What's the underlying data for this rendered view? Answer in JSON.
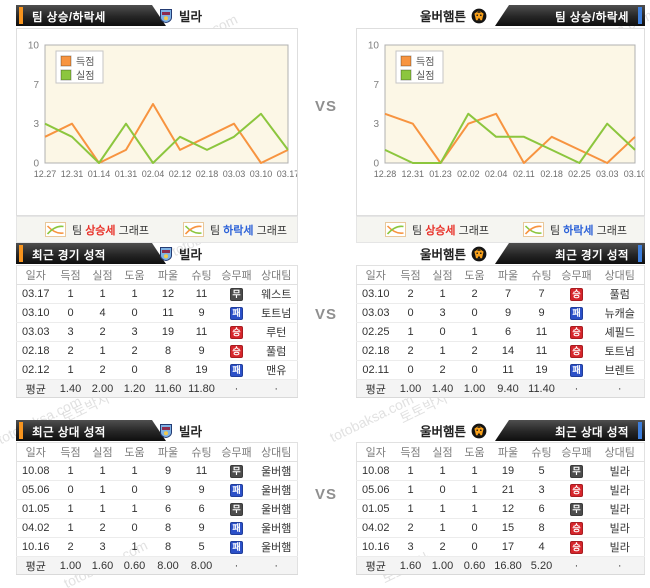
{
  "vs_label": "VS",
  "watermark": {
    "korean": "토토박사",
    "latin": "totobaksa.com"
  },
  "teams": {
    "left": {
      "name": "빌라"
    },
    "right": {
      "name": "울버햄튼"
    }
  },
  "colors": {
    "accent_orange": "#F7941E",
    "accent_blue": "#3D7EDB",
    "line_orange": "#F79440",
    "line_green": "#8CC63E",
    "rise_text": "#E8322A",
    "fall_text": "#2D62D8"
  },
  "result_badges": {
    "승": {
      "bg": "#D6252B"
    },
    "무": {
      "bg": "#4C4C4C"
    },
    "패": {
      "bg": "#2B50C8"
    }
  },
  "table_columns": [
    "일자",
    "득점",
    "실점",
    "도움",
    "파울",
    "슈팅",
    "승무패",
    "상대팀"
  ],
  "sections": {
    "trend": {
      "title": "팀 상승/하락세",
      "footer_legend": [
        {
          "pre": "팀",
          "word": "상승세",
          "post": "그래프",
          "color": "#E8322A",
          "icon": "rise"
        },
        {
          "pre": "팀",
          "word": "하락세",
          "post": "그래프",
          "color": "#2D62D8",
          "icon": "fall"
        }
      ]
    },
    "recent": {
      "title": "최근 경기 성적",
      "left": {
        "rows": [
          [
            "03.17",
            "1",
            "1",
            "1",
            "12",
            "11",
            "무",
            "웨스트"
          ],
          [
            "03.10",
            "0",
            "4",
            "0",
            "11",
            "9",
            "패",
            "토트넘"
          ],
          [
            "03.03",
            "3",
            "2",
            "3",
            "19",
            "11",
            "승",
            "루턴"
          ],
          [
            "02.18",
            "2",
            "1",
            "2",
            "8",
            "9",
            "승",
            "풀럼"
          ],
          [
            "02.12",
            "1",
            "2",
            "0",
            "8",
            "19",
            "패",
            "맨유"
          ]
        ],
        "avg": [
          "평균",
          "1.40",
          "2.00",
          "1.20",
          "11.60",
          "11.80",
          "·",
          "·"
        ]
      },
      "right": {
        "rows": [
          [
            "03.10",
            "2",
            "1",
            "2",
            "7",
            "7",
            "승",
            "풀럼"
          ],
          [
            "03.03",
            "0",
            "3",
            "0",
            "9",
            "9",
            "패",
            "뉴캐슬"
          ],
          [
            "02.25",
            "1",
            "0",
            "1",
            "6",
            "11",
            "승",
            "셰필드"
          ],
          [
            "02.18",
            "2",
            "1",
            "2",
            "14",
            "11",
            "승",
            "토트넘"
          ],
          [
            "02.11",
            "0",
            "2",
            "0",
            "11",
            "19",
            "패",
            "브렌트"
          ]
        ],
        "avg": [
          "평균",
          "1.00",
          "1.40",
          "1.00",
          "9.40",
          "11.40",
          "·",
          "·"
        ]
      }
    },
    "h2h": {
      "title": "최근 상대 성적",
      "left": {
        "rows": [
          [
            "10.08",
            "1",
            "1",
            "1",
            "9",
            "11",
            "무",
            "울버햄"
          ],
          [
            "05.06",
            "0",
            "1",
            "0",
            "9",
            "9",
            "패",
            "울버햄"
          ],
          [
            "01.05",
            "1",
            "1",
            "1",
            "6",
            "6",
            "무",
            "울버햄"
          ],
          [
            "04.02",
            "1",
            "2",
            "0",
            "8",
            "9",
            "패",
            "울버햄"
          ],
          [
            "10.16",
            "2",
            "3",
            "1",
            "8",
            "5",
            "패",
            "울버햄"
          ]
        ],
        "avg": [
          "평균",
          "1.00",
          "1.60",
          "0.60",
          "8.00",
          "8.00",
          "·",
          "·"
        ]
      },
      "right": {
        "rows": [
          [
            "10.08",
            "1",
            "1",
            "1",
            "19",
            "5",
            "무",
            "빌라"
          ],
          [
            "05.06",
            "1",
            "0",
            "1",
            "21",
            "3",
            "승",
            "빌라"
          ],
          [
            "01.05",
            "1",
            "1",
            "1",
            "12",
            "6",
            "무",
            "빌라"
          ],
          [
            "04.02",
            "2",
            "1",
            "0",
            "15",
            "8",
            "승",
            "빌라"
          ],
          [
            "10.16",
            "3",
            "2",
            "0",
            "17",
            "4",
            "승",
            "빌라"
          ]
        ],
        "avg": [
          "평균",
          "1.60",
          "1.00",
          "0.60",
          "16.80",
          "5.20",
          "·",
          "·"
        ]
      }
    }
  },
  "chart_data": [
    {
      "type": "line",
      "team": "빌라",
      "title": "팀 상승/하락세",
      "x": [
        "12.27",
        "12.31",
        "01.14",
        "01.31",
        "02.04",
        "02.12",
        "02.18",
        "03.03",
        "03.10",
        "03.17"
      ],
      "yticks": [
        0,
        3,
        7,
        10
      ],
      "ylim": [
        0,
        10
      ],
      "legend_position": "top-left",
      "series": [
        {
          "name": "득점",
          "color": "#F79440",
          "values": [
            2,
            3,
            0,
            1,
            5,
            1,
            2,
            3,
            0,
            1
          ]
        },
        {
          "name": "실점",
          "color": "#8CC63E",
          "values": [
            3,
            2,
            0,
            3,
            0,
            2,
            1,
            2,
            4,
            1
          ]
        }
      ]
    },
    {
      "type": "line",
      "team": "울버햄튼",
      "title": "팀 상승/하락세",
      "x": [
        "12.28",
        "12.31",
        "01.23",
        "02.02",
        "02.04",
        "02.11",
        "02.18",
        "02.25",
        "03.03",
        "03.10"
      ],
      "yticks": [
        0,
        3,
        7,
        10
      ],
      "ylim": [
        0,
        10
      ],
      "legend_position": "top-left",
      "series": [
        {
          "name": "득점",
          "color": "#F79440",
          "values": [
            4,
            3,
            0,
            3,
            4,
            0,
            2,
            1,
            0,
            2
          ]
        },
        {
          "name": "실점",
          "color": "#8CC63E",
          "values": [
            1,
            0,
            0,
            4,
            2,
            2,
            1,
            0,
            3,
            1
          ]
        }
      ]
    }
  ]
}
